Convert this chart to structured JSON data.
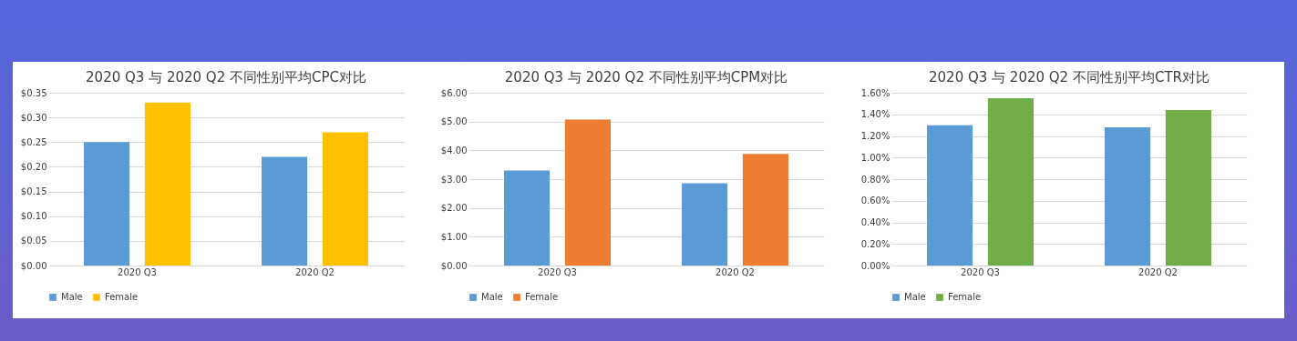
{
  "chart_data": [
    {
      "type": "bar",
      "title": "2020 Q3 与 2020 Q2 不同性别平均CPC对比",
      "categories": [
        "2020 Q3",
        "2020 Q2"
      ],
      "series": [
        {
          "name": "Male",
          "color": "#5b9bd5",
          "values": [
            0.25,
            0.22
          ]
        },
        {
          "name": "Female",
          "color": "#ffc000",
          "values": [
            0.33,
            0.27
          ]
        }
      ],
      "ylim": [
        0,
        0.35
      ],
      "yticks": [
        {
          "value": 0,
          "label": "$0.00"
        },
        {
          "value": 0.05,
          "label": "$0.05"
        },
        {
          "value": 0.1,
          "label": "$0.10"
        },
        {
          "value": 0.15,
          "label": "$0.15"
        },
        {
          "value": 0.2,
          "label": "$0.20"
        },
        {
          "value": 0.25,
          "label": "$0.25"
        },
        {
          "value": 0.3,
          "label": "$0.30"
        },
        {
          "value": 0.35,
          "label": "$0.35"
        }
      ],
      "grid": "y",
      "legend": "bottom"
    },
    {
      "type": "bar",
      "title": "2020 Q3 与 2020 Q2 不同性别平均CPM对比",
      "categories": [
        "2020 Q3",
        "2020 Q2"
      ],
      "series": [
        {
          "name": "Male",
          "color": "#5b9bd5",
          "values": [
            3.3,
            2.86
          ]
        },
        {
          "name": "Female",
          "color": "#ed7d31",
          "values": [
            5.07,
            3.88
          ]
        }
      ],
      "ylim": [
        0,
        6
      ],
      "yticks": [
        {
          "value": 0,
          "label": "$0.00"
        },
        {
          "value": 1,
          "label": "$1.00"
        },
        {
          "value": 2,
          "label": "$2.00"
        },
        {
          "value": 3,
          "label": "$3.00"
        },
        {
          "value": 4,
          "label": "$4.00"
        },
        {
          "value": 5,
          "label": "$5.00"
        },
        {
          "value": 6,
          "label": "$6.00"
        }
      ],
      "grid": "y",
      "legend": "bottom"
    },
    {
      "type": "bar",
      "title": "2020 Q3 与 2020 Q2 不同性别平均CTR对比",
      "categories": [
        "2020 Q3",
        "2020 Q2"
      ],
      "series": [
        {
          "name": "Male",
          "color": "#5b9bd5",
          "values": [
            1.3,
            1.28
          ]
        },
        {
          "name": "Female",
          "color": "#70ad47",
          "values": [
            1.55,
            1.44
          ]
        }
      ],
      "ylim": [
        0,
        1.6
      ],
      "yticks": [
        {
          "value": 0,
          "label": "0.00%"
        },
        {
          "value": 0.2,
          "label": "0.20%"
        },
        {
          "value": 0.4,
          "label": "0.40%"
        },
        {
          "value": 0.6,
          "label": "0.60%"
        },
        {
          "value": 0.8,
          "label": "0.80%"
        },
        {
          "value": 1,
          "label": "1.00%"
        },
        {
          "value": 1.2,
          "label": "1.20%"
        },
        {
          "value": 1.4,
          "label": "1.40%"
        },
        {
          "value": 1.6,
          "label": "1.60%"
        }
      ],
      "grid": "y",
      "legend": "bottom"
    }
  ]
}
